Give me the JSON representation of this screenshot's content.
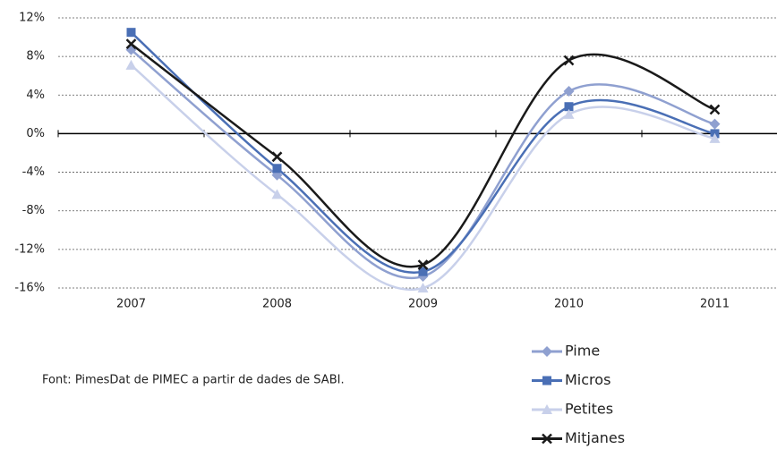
{
  "chart_data": {
    "type": "line",
    "categories": [
      "2007",
      "2008",
      "2009",
      "2010",
      "2011"
    ],
    "series": [
      {
        "name": "Pime",
        "color": "#8fa0d0",
        "marker": "diamond",
        "values": [
          8.7,
          -4.3,
          -14.8,
          4.4,
          1.0
        ]
      },
      {
        "name": "Micros",
        "color": "#4a6fb5",
        "marker": "square",
        "values": [
          10.5,
          -3.6,
          -14.3,
          2.8,
          0.0
        ]
      },
      {
        "name": "Petites",
        "color": "#c8d0ea",
        "marker": "triangle",
        "values": [
          7.1,
          -6.3,
          -16.0,
          2.0,
          -0.5
        ]
      },
      {
        "name": "Mitjanes",
        "color": "#1a1a1a",
        "marker": "x",
        "values": [
          9.3,
          -2.4,
          -13.6,
          7.6,
          2.5
        ]
      }
    ],
    "ylim": [
      -16,
      12
    ],
    "yticks": [
      {
        "value": -16,
        "label": "-16%"
      },
      {
        "value": -12,
        "label": "-12%"
      },
      {
        "value": -8,
        "label": "-8%"
      },
      {
        "value": -4,
        "label": "-4%"
      },
      {
        "value": 0,
        "label": "0%"
      },
      {
        "value": 4,
        "label": "4%"
      },
      {
        "value": 8,
        "label": "8%"
      },
      {
        "value": 12,
        "label": "12%"
      }
    ],
    "grid": true,
    "source": "Font: PimesDat de PIMEC a partir de dades de SABI.",
    "legend_position": "bottom-right"
  }
}
